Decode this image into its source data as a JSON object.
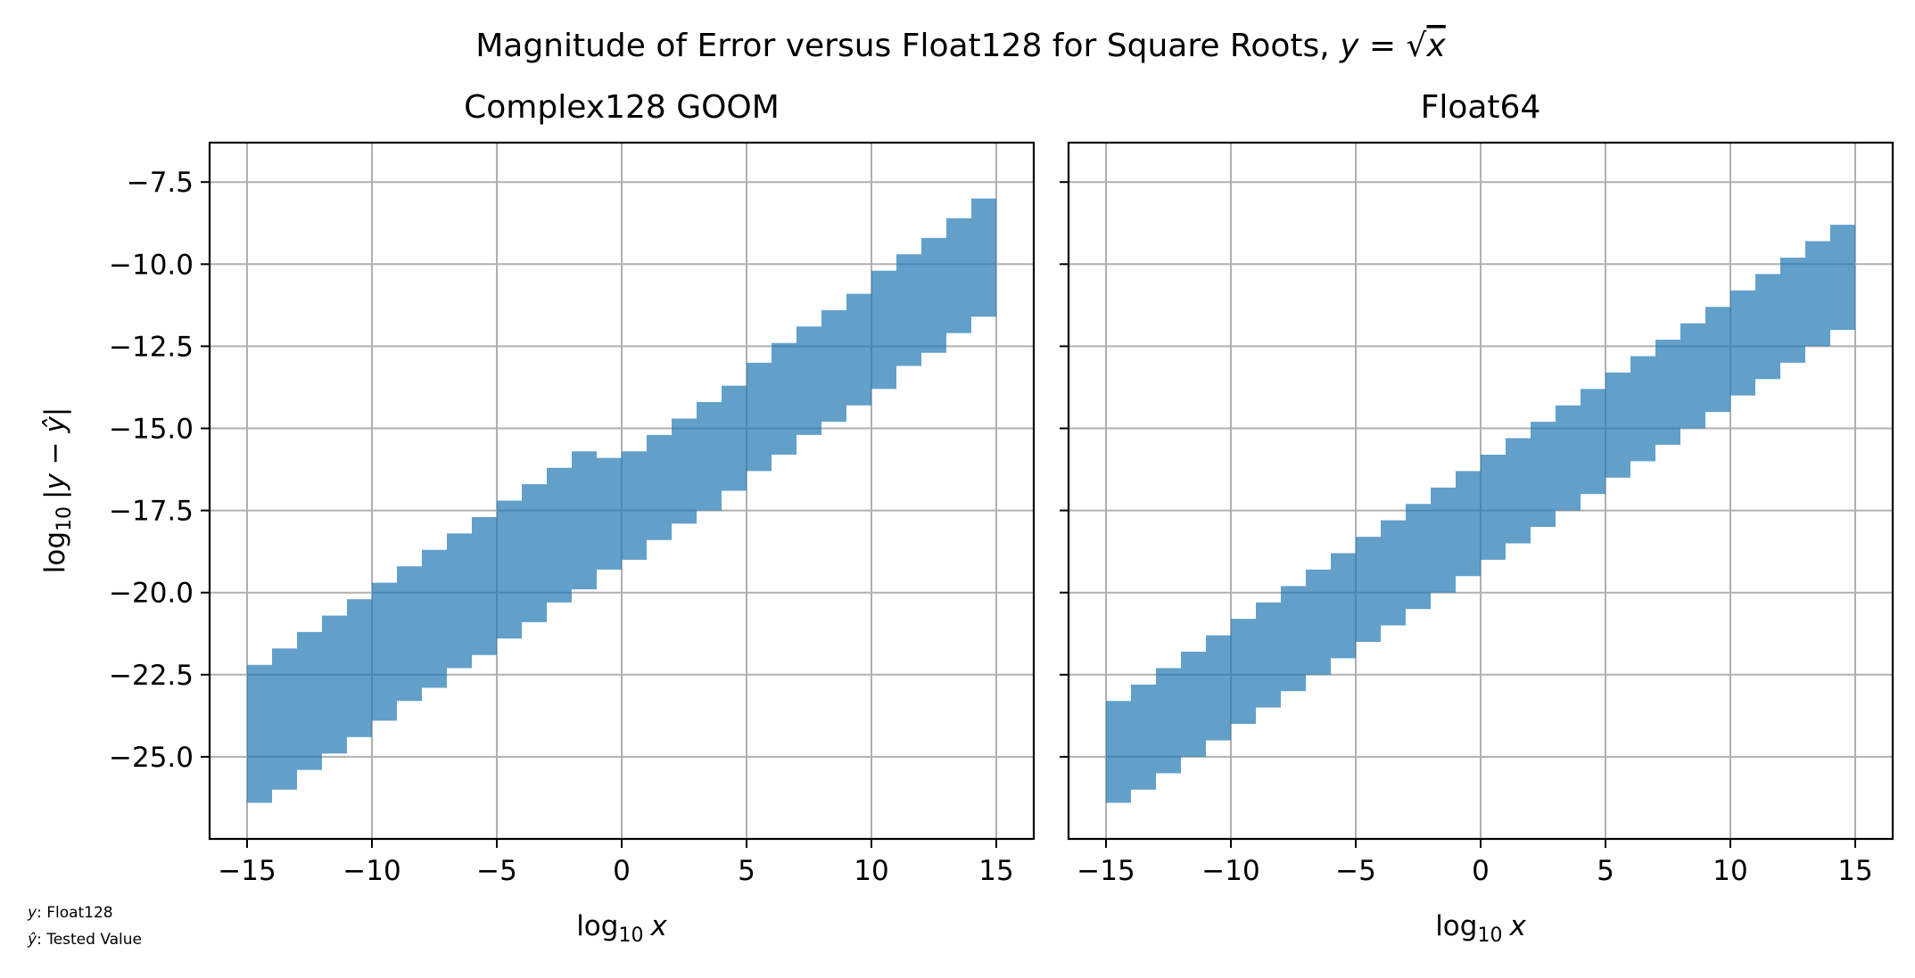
{
  "suptitle": {
    "prefix": "Magnitude of Error versus Float128 for Square Roots, ",
    "math_y": "y",
    "math_eq": " = ",
    "math_sqrt": "√",
    "math_x": "x"
  },
  "axis_labels": {
    "x_log": "log",
    "x_sub": "10",
    "x_var": "x",
    "y_log": "log",
    "y_sub": "10",
    "y_expr": "|y − ŷ|"
  },
  "footnote": {
    "y_sym": "y",
    "y_text": ":  Float128",
    "yhat_sym": "ŷ",
    "yhat_text": ":  Tested Value"
  },
  "colors": {
    "fill": "#1f77b4",
    "grid": "#b0b0b0"
  },
  "chart_data": [
    {
      "type": "area",
      "title": "Complex128 GOOM",
      "xlim": [
        -16.5,
        16.5
      ],
      "ylim": [
        -27.5,
        -6.3
      ],
      "xticks": [
        -15,
        -10,
        -5,
        0,
        5,
        10,
        15
      ],
      "yticks": [
        -25.0,
        -22.5,
        -20.0,
        -17.5,
        -15.0,
        -12.5,
        -10.0,
        -7.5
      ],
      "xtick_labels": [
        "−15",
        "−10",
        "−5",
        "0",
        "5",
        "10",
        "15"
      ],
      "ytick_labels": [
        "−25.0",
        "−22.5",
        "−20.0",
        "−17.5",
        "−15.0",
        "−12.5",
        "−10.0",
        "−7.5"
      ],
      "grid": true,
      "series": [
        {
          "upper": {
            "x": [
              -15,
              -14,
              -13,
              -12,
              -11,
              -10,
              -9,
              -8,
              -7,
              -6,
              -5,
              -4,
              -3,
              -2,
              -1,
              0,
              1,
              2,
              3,
              4,
              5,
              6,
              7,
              8,
              9,
              10,
              11,
              12,
              13,
              14,
              15
            ],
            "y": [
              -22.2,
              -21.7,
              -21.2,
              -20.7,
              -20.2,
              -19.7,
              -19.2,
              -18.7,
              -18.2,
              -17.7,
              -17.2,
              -16.7,
              -16.2,
              -15.7,
              -15.9,
              -15.7,
              -15.2,
              -14.7,
              -14.2,
              -13.7,
              -13.0,
              -12.4,
              -11.9,
              -11.4,
              -10.9,
              -10.2,
              -9.7,
              -9.2,
              -8.6,
              -8.0,
              -7.3
            ]
          },
          "lower": {
            "x": [
              -15,
              -14,
              -13,
              -12,
              -11,
              -10,
              -9,
              -8,
              -7,
              -6,
              -5,
              -4,
              -3,
              -2,
              -1,
              0,
              1,
              2,
              3,
              4,
              5,
              6,
              7,
              8,
              9,
              10,
              11,
              12,
              13,
              14,
              15
            ],
            "y": [
              -26.4,
              -26.0,
              -25.4,
              -24.9,
              -24.4,
              -23.9,
              -23.3,
              -22.9,
              -22.3,
              -21.9,
              -21.4,
              -20.9,
              -20.3,
              -19.9,
              -19.3,
              -19.0,
              -18.4,
              -17.9,
              -17.5,
              -16.9,
              -16.3,
              -15.8,
              -15.2,
              -14.8,
              -14.3,
              -13.8,
              -13.1,
              -12.7,
              -12.1,
              -11.6,
              -11.3
            ]
          }
        }
      ]
    },
    {
      "type": "area",
      "title": "Float64",
      "xlim": [
        -16.5,
        16.5
      ],
      "ylim": [
        -27.5,
        -6.3
      ],
      "xticks": [
        -15,
        -10,
        -5,
        0,
        5,
        10,
        15
      ],
      "yticks": [
        -25.0,
        -22.5,
        -20.0,
        -17.5,
        -15.0,
        -12.5,
        -10.0,
        -7.5
      ],
      "xtick_labels": [
        "−15",
        "−10",
        "−5",
        "0",
        "5",
        "10",
        "15"
      ],
      "ytick_labels": [],
      "grid": true,
      "series": [
        {
          "upper": {
            "x": [
              -15,
              -14,
              -13,
              -12,
              -11,
              -10,
              -9,
              -8,
              -7,
              -6,
              -5,
              -4,
              -3,
              -2,
              -1,
              0,
              1,
              2,
              3,
              4,
              5,
              6,
              7,
              8,
              9,
              10,
              11,
              12,
              13,
              14,
              15
            ],
            "y": [
              -23.3,
              -22.8,
              -22.3,
              -21.8,
              -21.3,
              -20.8,
              -20.3,
              -19.8,
              -19.3,
              -18.8,
              -18.3,
              -17.8,
              -17.3,
              -16.8,
              -16.3,
              -15.8,
              -15.3,
              -14.8,
              -14.3,
              -13.8,
              -13.3,
              -12.8,
              -12.3,
              -11.8,
              -11.3,
              -10.8,
              -10.3,
              -9.8,
              -9.3,
              -8.8,
              -8.5
            ]
          },
          "lower": {
            "x": [
              -15,
              -14,
              -13,
              -12,
              -11,
              -10,
              -9,
              -8,
              -7,
              -6,
              -5,
              -4,
              -3,
              -2,
              -1,
              0,
              1,
              2,
              3,
              4,
              5,
              6,
              7,
              8,
              9,
              10,
              11,
              12,
              13,
              14,
              15
            ],
            "y": [
              -26.4,
              -26.0,
              -25.5,
              -25.0,
              -24.5,
              -24.0,
              -23.5,
              -23.0,
              -22.5,
              -22.0,
              -21.5,
              -21.0,
              -20.5,
              -20.0,
              -19.5,
              -19.0,
              -18.5,
              -18.0,
              -17.5,
              -17.0,
              -16.5,
              -16.0,
              -15.5,
              -15.0,
              -14.5,
              -14.0,
              -13.5,
              -13.0,
              -12.5,
              -12.0,
              -11.7
            ]
          }
        }
      ]
    }
  ]
}
